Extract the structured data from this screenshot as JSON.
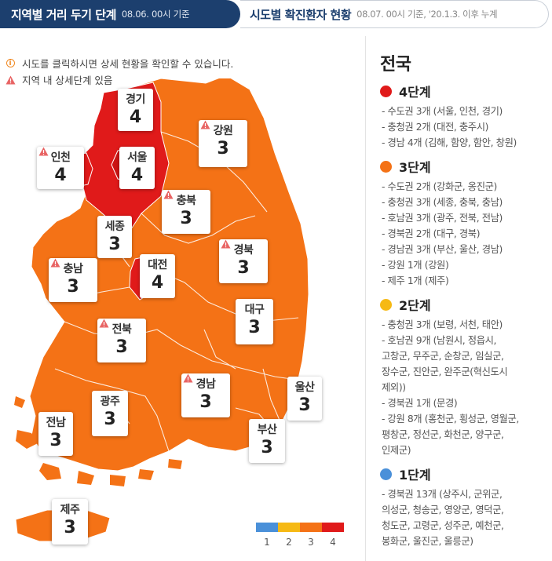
{
  "tabs": {
    "active_title": "지역별 거리 두기 단계",
    "active_sub": "08.06. 00시 기준",
    "inactive_title": "시도별 확진환자 현황",
    "inactive_sub": "08.07. 00시 기준, '20.1.3. 이후 누계"
  },
  "notes": {
    "info": "시도를 클릭하시면 상세 현황을 확인할 수 있습니다.",
    "warning": "지역 내 상세단계 있음"
  },
  "regions": {
    "gyeonggi": {
      "name": "경기",
      "level": "4"
    },
    "seoul": {
      "name": "서울",
      "level": "4"
    },
    "incheon": {
      "name": "인천",
      "level": "4"
    },
    "gangwon": {
      "name": "강원",
      "level": "3"
    },
    "chungbuk": {
      "name": "충북",
      "level": "3"
    },
    "sejong": {
      "name": "세종",
      "level": "3"
    },
    "chungnam": {
      "name": "충남",
      "level": "3"
    },
    "daejeon": {
      "name": "대전",
      "level": "4"
    },
    "gyeongbuk": {
      "name": "경북",
      "level": "3"
    },
    "daegu": {
      "name": "대구",
      "level": "3"
    },
    "jeonbuk": {
      "name": "전북",
      "level": "3"
    },
    "gwangju": {
      "name": "광주",
      "level": "3"
    },
    "jeonnam": {
      "name": "전남",
      "level": "3"
    },
    "gyeongnam": {
      "name": "경남",
      "level": "3"
    },
    "ulsan": {
      "name": "울산",
      "level": "3"
    },
    "busan": {
      "name": "부산",
      "level": "3"
    },
    "jeju": {
      "name": "제주",
      "level": "3"
    }
  },
  "legend": {
    "labels": [
      "1",
      "2",
      "3",
      "4"
    ],
    "colors": [
      "#4a90d9",
      "#f6b914",
      "#f47216",
      "#e01a1a"
    ]
  },
  "colors": {
    "level4": "#e01a1a",
    "level3": "#f47216",
    "level2": "#f6b914",
    "level1": "#4a90d9",
    "nav": "#1c3f6e",
    "warning": "#e86464"
  },
  "side": {
    "title": "전국",
    "groups": [
      {
        "label": "4단계",
        "items": [
          "- 수도권 3개 (서울, 인천, 경기)",
          "- 충청권 2개 (대전, 충주시)",
          "- 경남 4개 (김해, 함양, 함안, 창원)"
        ]
      },
      {
        "label": "3단계",
        "items": [
          "- 수도권 2개 (강화군, 옹진군)",
          "- 충청권 3개 (세종, 충북, 충남)",
          "- 호남권 3개 (광주, 전북, 전남)",
          "- 경북권 2개 (대구, 경북)",
          "- 경남권 3개 (부산, 울산, 경남)",
          "- 강원 1개 (강원)",
          "- 제주 1개 (제주)"
        ]
      },
      {
        "label": "2단계",
        "items": [
          "- 충청권 3개 (보령, 서천, 태안)",
          "- 호남권 9개 (남원시, 정읍시,",
          "고창군, 무주군, 순창군, 임실군,",
          "장수군, 진안군, 완주군(혁신도시",
          "제외))",
          "- 경북권 1개 (문경)",
          "- 강원 8개 (홍천군, 횡성군, 영월군,",
          "평창군, 정선군, 화천군, 양구군,",
          "인제군)"
        ]
      },
      {
        "label": "1단계",
        "items": [
          "- 경북권 13개 (상주시, 군위군,",
          "의성군, 청송군, 영양군, 영덕군,",
          "청도군, 고령군, 성주군, 예천군,",
          "봉화군, 울진군, 울릉군)"
        ]
      }
    ]
  }
}
